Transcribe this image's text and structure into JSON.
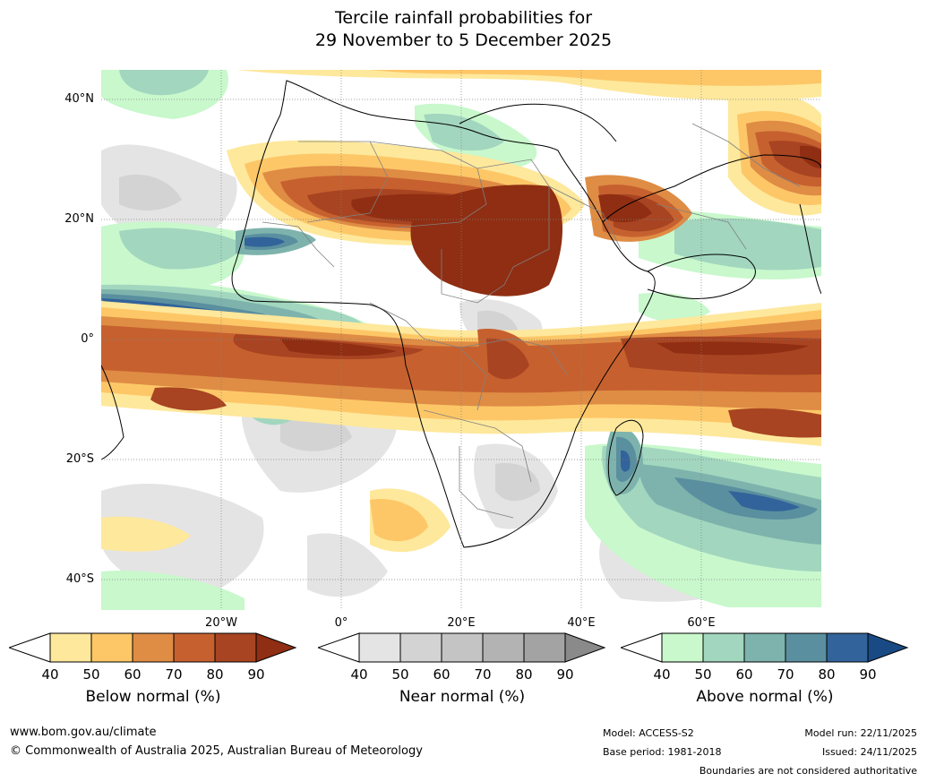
{
  "title": {
    "line1": "Tercile rainfall probabilities for",
    "line2": "29 November to 5 December 2025"
  },
  "map": {
    "region": "Africa and surrounding oceans",
    "lat_labels": [
      "40°N",
      "20°N",
      "0°",
      "20°S",
      "40°S"
    ],
    "lon_labels": [
      "20°W",
      "0°",
      "20°E",
      "40°E",
      "60°E"
    ],
    "land_outline_color": "#000000",
    "border_color": "#808080",
    "gridline_color": "#808080"
  },
  "colorbars": [
    {
      "id": "below",
      "label": "Below normal (%)",
      "ticks": [
        "40",
        "50",
        "60",
        "70",
        "80",
        "90"
      ],
      "colors": [
        "#ffffff",
        "#fee89c",
        "#fdc767",
        "#df8c45",
        "#c6612f",
        "#a84421",
        "#8f2e12"
      ]
    },
    {
      "id": "near",
      "label": "Near normal (%)",
      "ticks": [
        "40",
        "50",
        "60",
        "70",
        "80",
        "90"
      ],
      "colors": [
        "#ffffff",
        "#e4e4e4",
        "#d3d3d3",
        "#c4c4c4",
        "#b3b3b3",
        "#a3a3a3",
        "#8a8a8a"
      ]
    },
    {
      "id": "above",
      "label": "Above normal (%)",
      "ticks": [
        "40",
        "50",
        "60",
        "70",
        "80",
        "90"
      ],
      "colors": [
        "#ffffff",
        "#c8f8cc",
        "#a2d6bf",
        "#7eb3ad",
        "#5a8f9f",
        "#32639a",
        "#1a4a84"
      ]
    }
  ],
  "footer": {
    "website": "www.bom.gov.au/climate",
    "copyright": "© Commonwealth of Australia 2025, Australian Bureau of Meteorology",
    "model": "Model: ACCESS-S2",
    "base_period": "Base period: 1981-2018",
    "model_run": "Model run: 22/11/2025",
    "issued": "Issued: 24/11/2025",
    "disclaimer": "Boundaries are not considered authoritative"
  }
}
